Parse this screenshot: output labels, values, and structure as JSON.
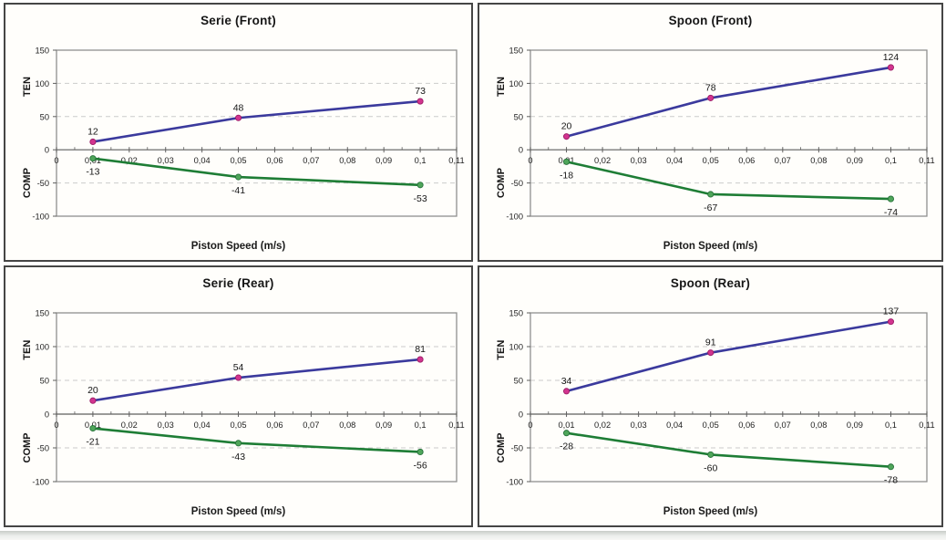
{
  "page": {
    "background": "#ffffff",
    "panel_background": "#fffefb",
    "panel_border_color": "#454545"
  },
  "palette": {
    "grid": "#cbcbcb",
    "axis": "#5e5e5e",
    "plot_border": "#8f8f8f",
    "text": "#1f1f1f",
    "ten_line": "#3b3a9d",
    "ten_marker": "#d2348f",
    "ten_marker_edge": "#9c1d66",
    "comp_line": "#1e7d35",
    "comp_marker": "#4fa65a",
    "comp_marker_edge": "#27713a"
  },
  "chart_data": [
    {
      "type": "line",
      "title": "Serie (Front)",
      "xlabel": "Piston Speed (m/s)",
      "ylabel_top": "TEN",
      "ylabel_bottom": "COMP",
      "xlim": [
        0,
        0.11
      ],
      "ylim": [
        -100,
        150
      ],
      "grid": "dashed-horizontal",
      "x_ticks": {
        "values": [
          0,
          0.01,
          0.02,
          0.03,
          0.04,
          0.05,
          0.06,
          0.07,
          0.08,
          0.09,
          0.1,
          0.11
        ],
        "labels": [
          "0",
          "0,01",
          "0,02",
          "0,03",
          "0,04",
          "0,05",
          "0,06",
          "0,07",
          "0,08",
          "0,09",
          "0,1",
          "0,11"
        ]
      },
      "minor_tick_start": 0.005,
      "minor_tick_step": 0.01,
      "y_ticks": {
        "values": [
          150,
          100,
          50,
          0,
          -50,
          -100
        ],
        "labels": [
          "150",
          "100",
          "50",
          "0",
          "-50",
          "-100"
        ],
        "grid_at": [
          100,
          50,
          -50
        ]
      },
      "x": [
        0.01,
        0.05,
        0.1
      ],
      "series": [
        {
          "name": "TEN",
          "values": [
            12,
            48,
            73
          ],
          "labels": [
            "12",
            "48",
            "73"
          ],
          "label_position": "above",
          "color": "#3b3a9d",
          "marker_color": "#d2348f",
          "marker_edge": "#9c1d66"
        },
        {
          "name": "COMP",
          "values": [
            -13,
            -41,
            -53
          ],
          "labels": [
            "-13",
            "-41",
            "-53"
          ],
          "label_position": "below",
          "color": "#1e7d35",
          "marker_color": "#4fa65a",
          "marker_edge": "#27713a"
        }
      ]
    },
    {
      "type": "line",
      "title": "Spoon (Front)",
      "xlabel": "Piston Speed (m/s)",
      "ylabel_top": "TEN",
      "ylabel_bottom": "COMP",
      "xlim": [
        0,
        0.11
      ],
      "ylim": [
        -100,
        150
      ],
      "grid": "dashed-horizontal",
      "x_ticks": {
        "values": [
          0,
          0.01,
          0.02,
          0.03,
          0.04,
          0.05,
          0.06,
          0.07,
          0.08,
          0.09,
          0.1,
          0.11
        ],
        "labels": [
          "0",
          "0,01",
          "0,02",
          "0,03",
          "0,04",
          "0,05",
          "0,06",
          "0,07",
          "0,08",
          "0,09",
          "0,1",
          "0,11"
        ]
      },
      "minor_tick_start": 0.005,
      "minor_tick_step": 0.01,
      "y_ticks": {
        "values": [
          150,
          100,
          50,
          0,
          -50,
          -100
        ],
        "labels": [
          "150",
          "100",
          "50",
          "0",
          "-50",
          "-100"
        ],
        "grid_at": [
          100,
          50,
          -50
        ]
      },
      "x": [
        0.01,
        0.05,
        0.1
      ],
      "series": [
        {
          "name": "TEN",
          "values": [
            20,
            78,
            124
          ],
          "labels": [
            "20",
            "78",
            "124"
          ],
          "label_position": "above",
          "color": "#3b3a9d",
          "marker_color": "#d2348f",
          "marker_edge": "#9c1d66"
        },
        {
          "name": "COMP",
          "values": [
            -18,
            -67,
            -74
          ],
          "labels": [
            "-18",
            "-67",
            "-74"
          ],
          "label_position": "below",
          "color": "#1e7d35",
          "marker_color": "#4fa65a",
          "marker_edge": "#27713a"
        }
      ]
    },
    {
      "type": "line",
      "title": "Serie (Rear)",
      "xlabel": "Piston Speed (m/s)",
      "ylabel_top": "TEN",
      "ylabel_bottom": "COMP",
      "xlim": [
        0,
        0.11
      ],
      "ylim": [
        -100,
        150
      ],
      "grid": "dashed-horizontal",
      "x_ticks": {
        "values": [
          0,
          0.01,
          0.02,
          0.03,
          0.04,
          0.05,
          0.06,
          0.07,
          0.08,
          0.09,
          0.1,
          0.11
        ],
        "labels": [
          "0",
          "0,01",
          "0,02",
          "0,03",
          "0,04",
          "0,05",
          "0,06",
          "0,07",
          "0,08",
          "0,09",
          "0,1",
          "0,11"
        ]
      },
      "minor_tick_start": 0.005,
      "minor_tick_step": 0.01,
      "y_ticks": {
        "values": [
          150,
          100,
          50,
          0,
          -50,
          -100
        ],
        "labels": [
          "150",
          "100",
          "50",
          "0",
          "-50",
          "-100"
        ],
        "grid_at": [
          100,
          50,
          -50
        ]
      },
      "x": [
        0.01,
        0.05,
        0.1
      ],
      "series": [
        {
          "name": "TEN",
          "values": [
            20,
            54,
            81
          ],
          "labels": [
            "20",
            "54",
            "81"
          ],
          "label_position": "above",
          "color": "#3b3a9d",
          "marker_color": "#d2348f",
          "marker_edge": "#9c1d66"
        },
        {
          "name": "COMP",
          "values": [
            -21,
            -43,
            -56
          ],
          "labels": [
            "-21",
            "-43",
            "-56"
          ],
          "label_position": "below",
          "color": "#1e7d35",
          "marker_color": "#4fa65a",
          "marker_edge": "#27713a"
        }
      ]
    },
    {
      "type": "line",
      "title": "Spoon (Rear)",
      "xlabel": "Piston Speed (m/s)",
      "ylabel_top": "TEN",
      "ylabel_bottom": "COMP",
      "xlim": [
        0,
        0.11
      ],
      "ylim": [
        -100,
        150
      ],
      "grid": "dashed-horizontal",
      "x_ticks": {
        "values": [
          0,
          0.01,
          0.02,
          0.03,
          0.04,
          0.05,
          0.06,
          0.07,
          0.08,
          0.09,
          0.1,
          0.11
        ],
        "labels": [
          "0",
          "0,01",
          "0,02",
          "0,03",
          "0,04",
          "0,05",
          "0,06",
          "0,07",
          "0,08",
          "0,09",
          "0,1",
          "0,11"
        ]
      },
      "minor_tick_start": 0.005,
      "minor_tick_step": 0.01,
      "y_ticks": {
        "values": [
          150,
          100,
          50,
          0,
          -50,
          -100
        ],
        "labels": [
          "150",
          "100",
          "50",
          "0",
          "-50",
          "-100"
        ],
        "grid_at": [
          100,
          50,
          -50
        ]
      },
      "x": [
        0.01,
        0.05,
        0.1
      ],
      "series": [
        {
          "name": "TEN",
          "values": [
            34,
            91,
            137
          ],
          "labels": [
            "34",
            "91",
            "137"
          ],
          "label_position": "above",
          "color": "#3b3a9d",
          "marker_color": "#d2348f",
          "marker_edge": "#9c1d66"
        },
        {
          "name": "COMP",
          "values": [
            -28,
            -60,
            -78
          ],
          "labels": [
            "-28",
            "-60",
            "-78"
          ],
          "label_position": "below",
          "color": "#1e7d35",
          "marker_color": "#4fa65a",
          "marker_edge": "#27713a"
        }
      ]
    }
  ]
}
